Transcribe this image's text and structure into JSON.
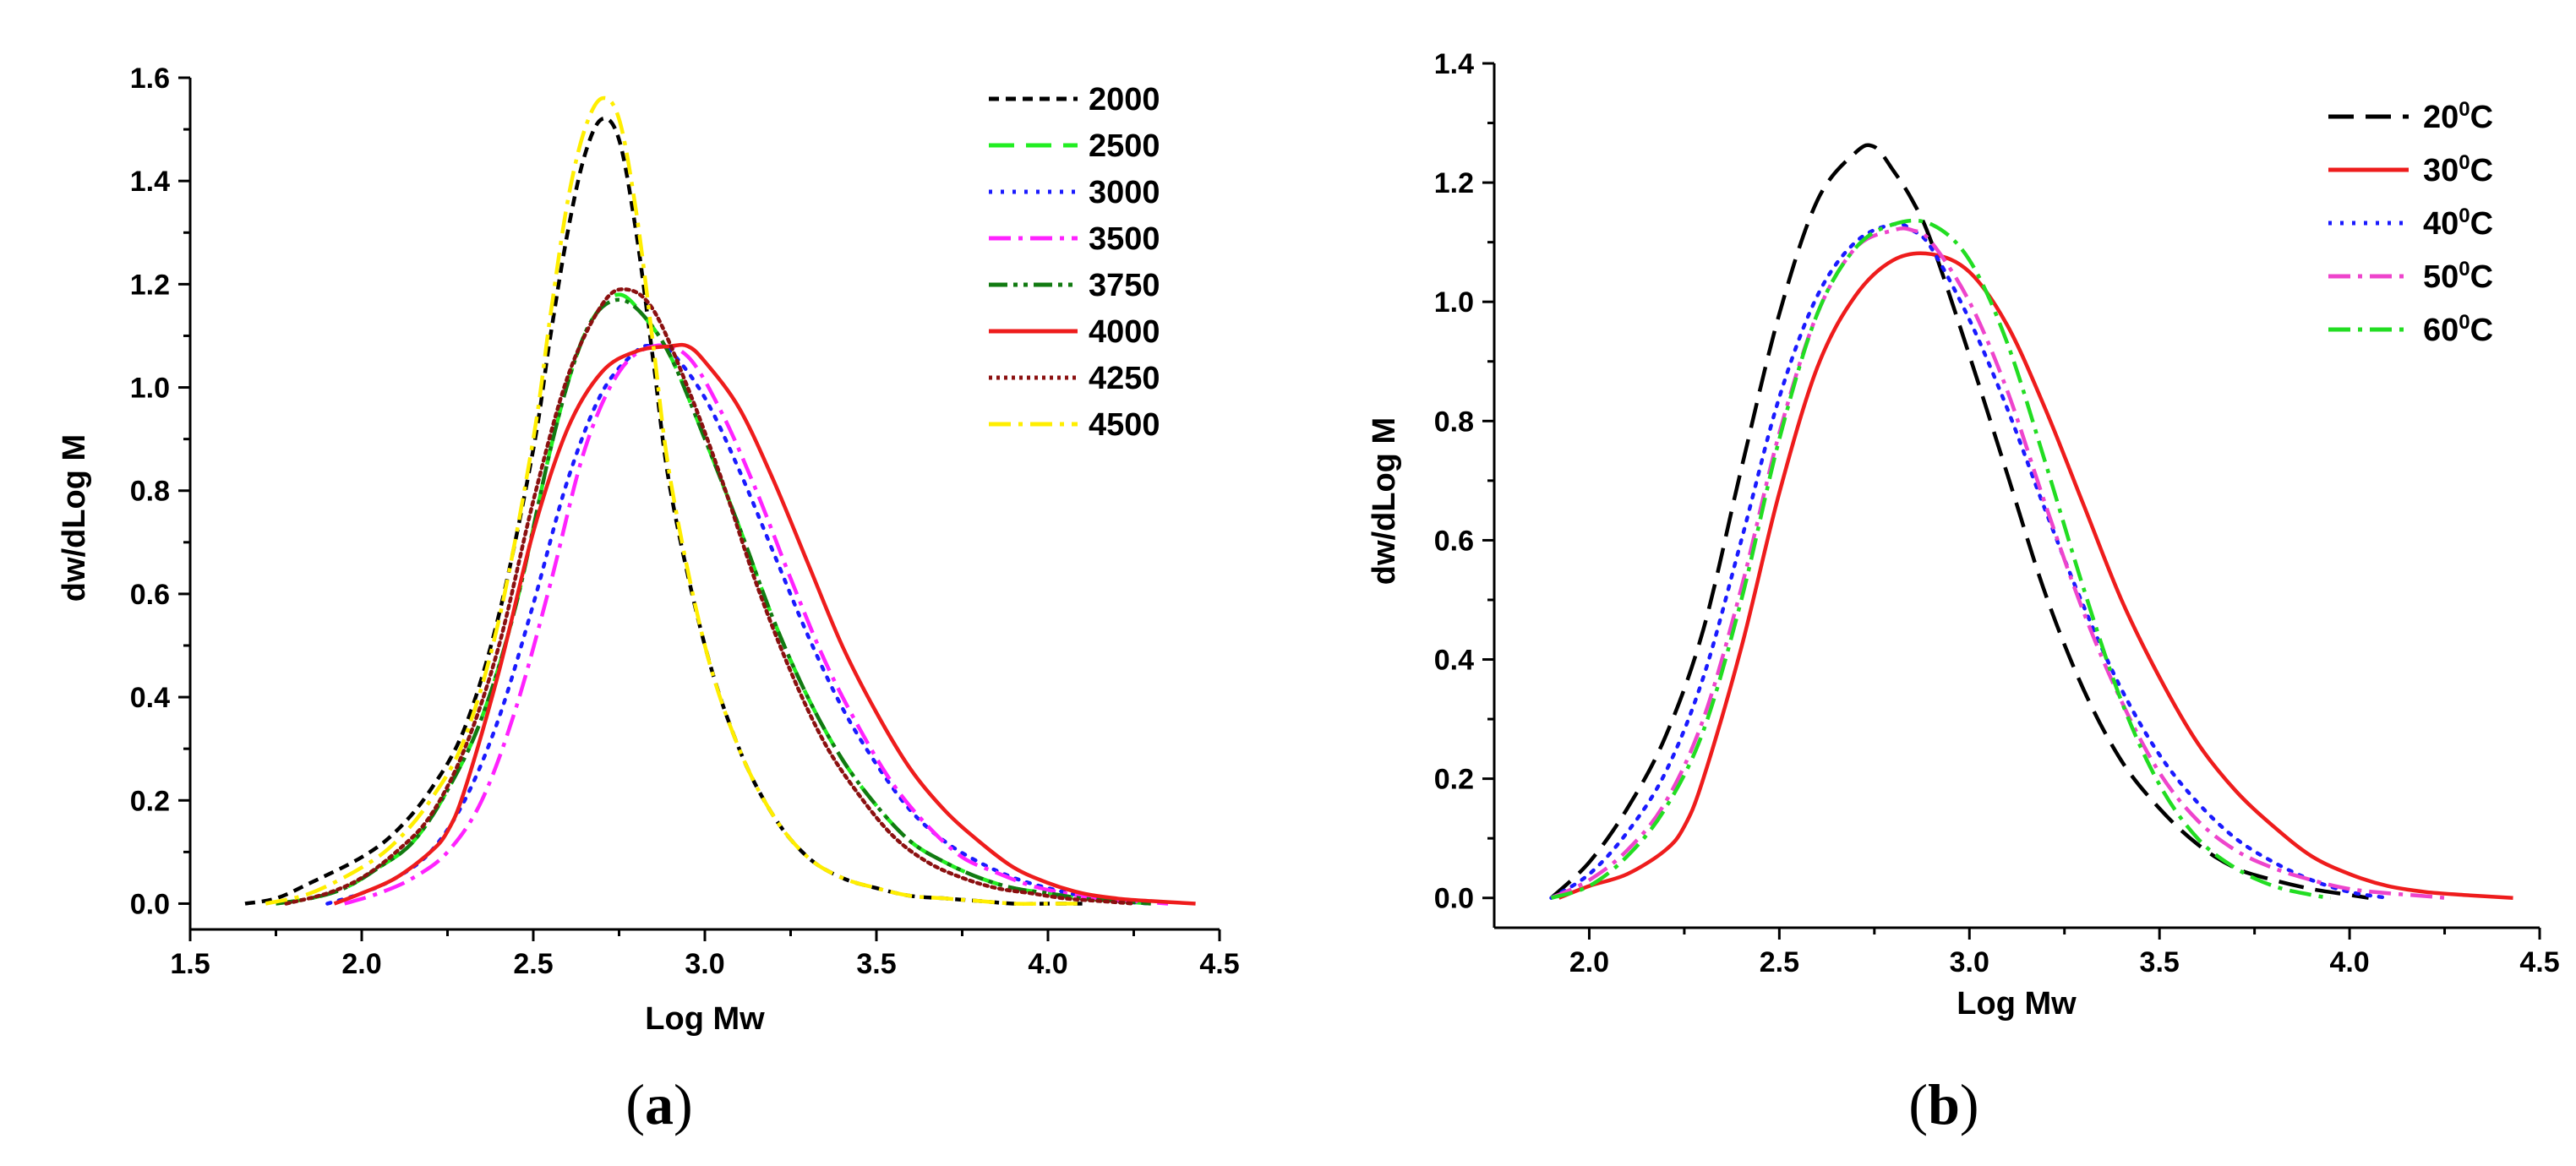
{
  "chart_data": [
    {
      "type": "line",
      "panel": "a",
      "panel_label": "a",
      "xlabel": "Log Mw",
      "ylabel": "dw/dLog M",
      "xlim": [
        1.5,
        4.5
      ],
      "ylim": [
        -0.05,
        1.6
      ],
      "xticks": [
        1.5,
        2.0,
        2.5,
        3.0,
        3.5,
        4.0,
        4.5
      ],
      "yticks": [
        0.0,
        0.2,
        0.4,
        0.6,
        0.8,
        1.0,
        1.2,
        1.4,
        1.6
      ],
      "xtick_labels": [
        "1.5",
        "2.0",
        "2.5",
        "3.0",
        "3.5",
        "4.0",
        "4.5"
      ],
      "ytick_labels": [
        "0.0",
        "0.2",
        "0.4",
        "0.6",
        "0.8",
        "1.0",
        "1.2",
        "1.4",
        "1.6"
      ],
      "legend_position": "top-right",
      "series": [
        {
          "name": "2000",
          "color": "#000000",
          "dash": "short-dash",
          "x": [
            1.66,
            1.75,
            1.85,
            2.0,
            2.1,
            2.2,
            2.3,
            2.4,
            2.5,
            2.55,
            2.6,
            2.65,
            2.7,
            2.75,
            2.8,
            2.85,
            2.9,
            3.0,
            3.1,
            3.2,
            3.3,
            3.4,
            3.5,
            3.6,
            3.7,
            3.8,
            3.9,
            4.0,
            4.1
          ],
          "y": [
            0.0,
            0.01,
            0.04,
            0.09,
            0.14,
            0.22,
            0.34,
            0.56,
            0.88,
            1.1,
            1.3,
            1.45,
            1.52,
            1.48,
            1.3,
            1.05,
            0.8,
            0.5,
            0.3,
            0.17,
            0.09,
            0.05,
            0.03,
            0.015,
            0.01,
            0.005,
            0.0,
            0.0,
            0.0
          ]
        },
        {
          "name": "2500",
          "color": "#22ee22",
          "dash": "long-dash",
          "x": [
            1.75,
            1.85,
            1.95,
            2.05,
            2.15,
            2.25,
            2.35,
            2.45,
            2.55,
            2.62,
            2.68,
            2.75,
            2.82,
            2.9,
            3.0,
            3.1,
            3.2,
            3.3,
            3.4,
            3.5,
            3.6,
            3.7,
            3.8,
            3.9,
            4.0,
            4.1,
            4.2,
            4.3
          ],
          "y": [
            0.0,
            0.01,
            0.03,
            0.07,
            0.12,
            0.22,
            0.36,
            0.58,
            0.88,
            1.05,
            1.14,
            1.18,
            1.14,
            1.06,
            0.9,
            0.73,
            0.55,
            0.4,
            0.28,
            0.19,
            0.12,
            0.08,
            0.05,
            0.03,
            0.02,
            0.01,
            0.005,
            0.0
          ]
        },
        {
          "name": "3000",
          "color": "#1a1aff",
          "dash": "dot",
          "x": [
            1.9,
            2.0,
            2.1,
            2.2,
            2.3,
            2.4,
            2.5,
            2.6,
            2.7,
            2.8,
            2.85,
            2.9,
            3.0,
            3.1,
            3.2,
            3.3,
            3.4,
            3.5,
            3.6,
            3.7,
            3.8,
            3.9,
            4.0,
            4.1,
            4.2,
            4.3
          ],
          "y": [
            0.0,
            0.02,
            0.05,
            0.1,
            0.2,
            0.36,
            0.58,
            0.82,
            0.99,
            1.07,
            1.08,
            1.07,
            0.98,
            0.84,
            0.68,
            0.52,
            0.38,
            0.27,
            0.18,
            0.12,
            0.08,
            0.05,
            0.03,
            0.015,
            0.005,
            0.0
          ]
        },
        {
          "name": "3500",
          "color": "#ff22ff",
          "dash": "dash-dot",
          "x": [
            1.95,
            2.05,
            2.15,
            2.25,
            2.35,
            2.45,
            2.55,
            2.65,
            2.75,
            2.85,
            2.95,
            3.05,
            3.15,
            3.25,
            3.35,
            3.45,
            3.55,
            3.65,
            3.75,
            3.85,
            3.95,
            4.05,
            4.15,
            4.25,
            4.35
          ],
          "y": [
            0.0,
            0.02,
            0.05,
            0.1,
            0.2,
            0.38,
            0.62,
            0.88,
            1.03,
            1.08,
            1.06,
            0.95,
            0.8,
            0.63,
            0.47,
            0.34,
            0.23,
            0.15,
            0.09,
            0.06,
            0.035,
            0.02,
            0.01,
            0.005,
            0.0
          ]
        },
        {
          "name": "3750",
          "color": "#117a11",
          "dash": "dash-dot-dot",
          "x": [
            1.75,
            1.85,
            1.95,
            2.05,
            2.15,
            2.25,
            2.35,
            2.45,
            2.55,
            2.62,
            2.68,
            2.75,
            2.82,
            2.9,
            3.0,
            3.1,
            3.2,
            3.3,
            3.4,
            3.5,
            3.6,
            3.7,
            3.8,
            3.9,
            4.0,
            4.1,
            4.2,
            4.3
          ],
          "y": [
            0.0,
            0.01,
            0.03,
            0.07,
            0.12,
            0.22,
            0.36,
            0.58,
            0.88,
            1.05,
            1.14,
            1.17,
            1.14,
            1.06,
            0.9,
            0.73,
            0.55,
            0.4,
            0.28,
            0.19,
            0.12,
            0.08,
            0.05,
            0.03,
            0.02,
            0.01,
            0.005,
            0.0
          ]
        },
        {
          "name": "4000",
          "color": "#ee1c1c",
          "dash": "solid",
          "x": [
            1.92,
            2.0,
            2.1,
            2.2,
            2.25,
            2.3,
            2.4,
            2.5,
            2.6,
            2.7,
            2.8,
            2.9,
            2.95,
            3.0,
            3.1,
            3.2,
            3.3,
            3.4,
            3.5,
            3.6,
            3.7,
            3.8,
            3.9,
            4.0,
            4.1,
            4.2,
            4.3,
            4.43
          ],
          "y": [
            0.0,
            0.02,
            0.05,
            0.1,
            0.14,
            0.22,
            0.45,
            0.72,
            0.92,
            1.03,
            1.07,
            1.08,
            1.08,
            1.05,
            0.96,
            0.82,
            0.66,
            0.5,
            0.37,
            0.26,
            0.18,
            0.12,
            0.07,
            0.04,
            0.02,
            0.01,
            0.005,
            0.0
          ]
        },
        {
          "name": "4250",
          "color": "#8b1010",
          "dash": "fine-dot",
          "x": [
            1.78,
            1.9,
            2.0,
            2.1,
            2.2,
            2.3,
            2.4,
            2.5,
            2.6,
            2.7,
            2.77,
            2.85,
            2.95,
            3.05,
            3.15,
            3.25,
            3.35,
            3.45,
            3.55,
            3.65,
            3.75,
            3.85,
            3.95,
            4.05,
            4.15,
            4.25
          ],
          "y": [
            0.0,
            0.02,
            0.05,
            0.1,
            0.17,
            0.3,
            0.5,
            0.78,
            1.02,
            1.16,
            1.19,
            1.15,
            1.0,
            0.82,
            0.62,
            0.45,
            0.31,
            0.21,
            0.13,
            0.08,
            0.05,
            0.03,
            0.02,
            0.01,
            0.005,
            0.0
          ]
        },
        {
          "name": "4500",
          "color": "#ffee00",
          "dash": "dash-dot",
          "x": [
            1.72,
            1.85,
            2.0,
            2.1,
            2.2,
            2.3,
            2.4,
            2.5,
            2.55,
            2.6,
            2.65,
            2.7,
            2.75,
            2.8,
            2.85,
            2.9,
            3.0,
            3.1,
            3.2,
            3.3,
            3.4,
            3.5,
            3.6,
            3.7,
            3.8,
            3.9,
            4.0,
            4.1
          ],
          "y": [
            0.0,
            0.02,
            0.07,
            0.12,
            0.2,
            0.32,
            0.55,
            0.9,
            1.14,
            1.36,
            1.5,
            1.56,
            1.52,
            1.34,
            1.08,
            0.82,
            0.5,
            0.3,
            0.17,
            0.09,
            0.05,
            0.03,
            0.015,
            0.01,
            0.005,
            0.0,
            0.0,
            0.0
          ]
        }
      ]
    },
    {
      "type": "line",
      "panel": "b",
      "panel_label": "b",
      "xlabel": "Log Mw",
      "ylabel": "dw/dLog M",
      "xlim": [
        1.75,
        4.5
      ],
      "ylim": [
        -0.05,
        1.4
      ],
      "xticks": [
        2.0,
        2.5,
        3.0,
        3.5,
        4.0,
        4.5
      ],
      "yticks": [
        0.0,
        0.2,
        0.4,
        0.6,
        0.8,
        1.0,
        1.2,
        1.4
      ],
      "xtick_labels": [
        "2.0",
        "2.5",
        "3.0",
        "3.5",
        "4.0",
        "4.5"
      ],
      "ytick_labels": [
        "0.0",
        "0.2",
        "0.4",
        "0.6",
        "0.8",
        "1.0",
        "1.2",
        "1.4"
      ],
      "legend_position": "top-right",
      "series": [
        {
          "name": "20",
          "sup": "0",
          "unit": "C",
          "color": "#000000",
          "dash": "long-dash",
          "x": [
            1.9,
            2.0,
            2.1,
            2.2,
            2.3,
            2.4,
            2.5,
            2.6,
            2.7,
            2.75,
            2.8,
            2.85,
            2.9,
            3.0,
            3.1,
            3.2,
            3.3,
            3.4,
            3.5,
            3.6,
            3.7,
            3.8,
            3.9,
            4.0,
            4.05
          ],
          "y": [
            0.0,
            0.06,
            0.15,
            0.27,
            0.45,
            0.72,
            0.98,
            1.17,
            1.25,
            1.26,
            1.22,
            1.17,
            1.1,
            0.91,
            0.71,
            0.51,
            0.35,
            0.23,
            0.15,
            0.09,
            0.05,
            0.03,
            0.015,
            0.005,
            0.0
          ]
        },
        {
          "name": "30",
          "sup": "0",
          "unit": "C",
          "color": "#ee1c1c",
          "dash": "solid",
          "x": [
            1.92,
            2.0,
            2.1,
            2.2,
            2.25,
            2.3,
            2.4,
            2.5,
            2.6,
            2.7,
            2.8,
            2.9,
            3.0,
            3.1,
            3.2,
            3.3,
            3.4,
            3.5,
            3.6,
            3.7,
            3.8,
            3.9,
            4.0,
            4.1,
            4.2,
            4.3,
            4.43
          ],
          "y": [
            0.0,
            0.02,
            0.04,
            0.08,
            0.12,
            0.2,
            0.42,
            0.68,
            0.89,
            1.01,
            1.07,
            1.08,
            1.05,
            0.96,
            0.82,
            0.66,
            0.5,
            0.37,
            0.26,
            0.18,
            0.12,
            0.07,
            0.04,
            0.02,
            0.01,
            0.005,
            0.0
          ]
        },
        {
          "name": "40",
          "sup": "0",
          "unit": "C",
          "color": "#1a1aff",
          "dash": "dot",
          "x": [
            1.9,
            2.0,
            2.1,
            2.2,
            2.3,
            2.4,
            2.5,
            2.6,
            2.7,
            2.8,
            2.85,
            2.9,
            3.0,
            3.1,
            3.2,
            3.3,
            3.4,
            3.5,
            3.6,
            3.7,
            3.8,
            3.9,
            4.0,
            4.1
          ],
          "y": [
            0.0,
            0.04,
            0.11,
            0.21,
            0.37,
            0.6,
            0.84,
            1.01,
            1.1,
            1.13,
            1.12,
            1.09,
            0.97,
            0.82,
            0.65,
            0.49,
            0.35,
            0.24,
            0.16,
            0.1,
            0.06,
            0.03,
            0.01,
            0.0
          ]
        },
        {
          "name": "50",
          "sup": "0",
          "unit": "C",
          "color": "#ee44cc",
          "dash": "dash-dot",
          "x": [
            1.9,
            2.0,
            2.1,
            2.2,
            2.3,
            2.4,
            2.5,
            2.6,
            2.7,
            2.8,
            2.85,
            2.9,
            3.0,
            3.1,
            3.2,
            3.3,
            3.4,
            3.5,
            3.6,
            3.7,
            3.8,
            3.9,
            4.0,
            4.1,
            4.2,
            4.25
          ],
          "y": [
            0.0,
            0.03,
            0.08,
            0.16,
            0.3,
            0.52,
            0.78,
            0.98,
            1.09,
            1.12,
            1.12,
            1.1,
            1.0,
            0.85,
            0.66,
            0.48,
            0.33,
            0.21,
            0.13,
            0.08,
            0.05,
            0.03,
            0.015,
            0.008,
            0.003,
            0.0
          ]
        },
        {
          "name": "60",
          "sup": "0",
          "unit": "C",
          "color": "#22dd22",
          "dash": "dash-dot",
          "x": [
            1.9,
            2.0,
            2.1,
            2.2,
            2.3,
            2.4,
            2.5,
            2.6,
            2.7,
            2.8,
            2.9,
            3.0,
            3.1,
            3.2,
            3.3,
            3.4,
            3.5,
            3.6,
            3.7,
            3.8,
            3.9,
            3.95
          ],
          "y": [
            0.0,
            0.02,
            0.07,
            0.15,
            0.28,
            0.5,
            0.77,
            0.98,
            1.09,
            1.13,
            1.13,
            1.07,
            0.93,
            0.73,
            0.52,
            0.33,
            0.19,
            0.1,
            0.05,
            0.02,
            0.005,
            0.0
          ]
        }
      ]
    }
  ]
}
